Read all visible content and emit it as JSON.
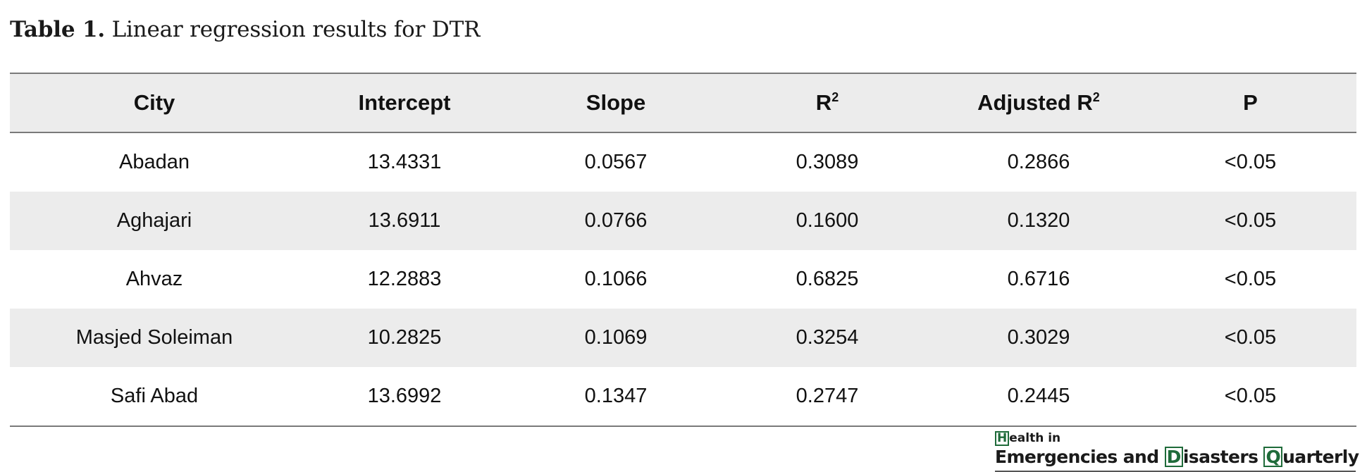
{
  "caption": {
    "label": "Table 1.",
    "text": "Linear regression results for DTR"
  },
  "table": {
    "headers": [
      "City",
      "Intercept",
      "Slope",
      "R",
      "Adjusted R",
      "P"
    ],
    "header_superscripts": [
      "",
      "",
      "",
      "2",
      "2",
      ""
    ],
    "rows": [
      [
        "Abadan",
        "13.4331",
        "0.0567",
        "0.3089",
        "0.2866",
        "<0.05"
      ],
      [
        "Aghajari",
        "13.6911",
        "0.0766",
        "0.1600",
        "0.1320",
        "<0.05"
      ],
      [
        "Ahvaz",
        "12.2883",
        "0.1066",
        "0.6825",
        "0.6716",
        "<0.05"
      ],
      [
        "Masjed Soleiman",
        "10.2825",
        "0.1069",
        "0.3254",
        "0.3029",
        "<0.05"
      ],
      [
        "Safi Abad",
        "13.6992",
        "0.1347",
        "0.2747",
        "0.2445",
        "<0.05"
      ]
    ]
  },
  "journal": {
    "line1_first": "H",
    "line1_rest": "ealth in",
    "line2_a": "Emergencies and ",
    "line2_d": "D",
    "line2_b": "isasters ",
    "line2_q": "Q",
    "line2_c": "uarterly",
    "accent_color": "#1f6b3a"
  }
}
